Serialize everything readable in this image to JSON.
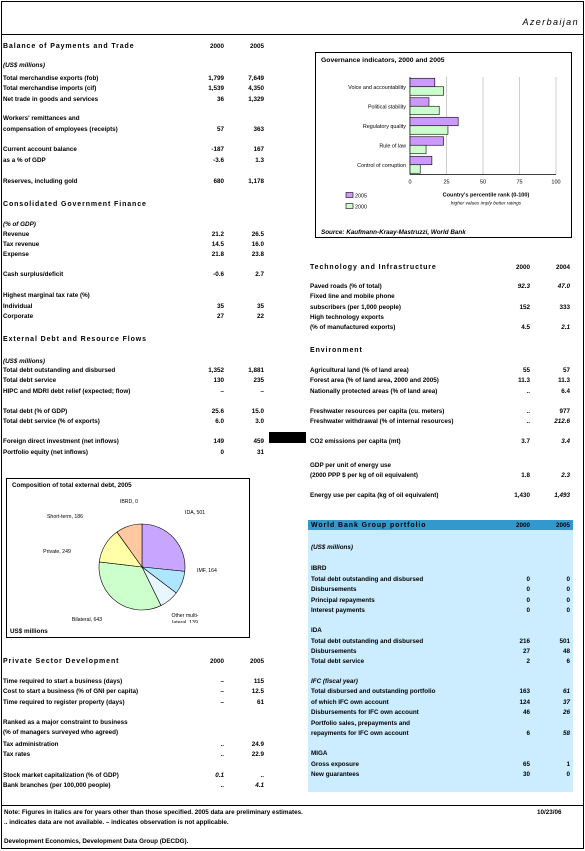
{
  "country": "Azerbaijan",
  "bop": {
    "title": "Balance of Payments and Trade",
    "y1": "2000",
    "y2": "2005",
    "unit": "(US$ millions)",
    "rows": [
      {
        "label": "Total merchandise exports (fob)",
        "v1": "1,799",
        "v2": "7,649"
      },
      {
        "label": "Total merchandise imports (cif)",
        "v1": "1,539",
        "v2": "4,350"
      },
      {
        "label": "Net trade in goods and services",
        "v1": "36",
        "v2": "1,329"
      },
      {
        "label": "Workers' remittances and",
        "v1": "",
        "v2": ""
      },
      {
        "label": "   compensation of employees (receipts)",
        "v1": "57",
        "v2": "363"
      },
      {
        "label": "Current account balance",
        "v1": "-187",
        "v2": "167"
      },
      {
        "label": "   as a % of GDP",
        "v1": "-3.6",
        "v2": "1.3"
      },
      {
        "label": "Reserves, including gold",
        "v1": "680",
        "v2": "1,178"
      }
    ]
  },
  "cgf": {
    "title": "Consolidated Government Finance",
    "unit": "(% of GDP)",
    "rows": [
      {
        "label": "Revenue",
        "v1": "21.2",
        "v2": "26.5"
      },
      {
        "label": "   Tax revenue",
        "v1": "14.5",
        "v2": "16.0"
      },
      {
        "label": "Expense",
        "v1": "21.8",
        "v2": "23.8"
      },
      {
        "label": "Cash surplus/deficit",
        "v1": "-0.6",
        "v2": "2.7"
      },
      {
        "label": "Highest marginal tax rate (%)",
        "v1": "",
        "v2": ""
      },
      {
        "label": "   Individual",
        "v1": "35",
        "v2": "35"
      },
      {
        "label": "   Corporate",
        "v1": "27",
        "v2": "22"
      }
    ]
  },
  "debt": {
    "title": "External Debt and Resource Flows",
    "unit": "(US$ millions)",
    "rows": [
      {
        "label": "Total debt outstanding and disbursed",
        "v1": "1,352",
        "v2": "1,881"
      },
      {
        "label": "Total debt service",
        "v1": "130",
        "v2": "235"
      },
      {
        "label": "HIPC and MDRI debt relief (expected; flow)",
        "v1": "–",
        "v2": "–"
      },
      {
        "label": "Total debt (% of GDP)",
        "v1": "25.6",
        "v2": "15.0"
      },
      {
        "label": "Total debt service (% of exports)",
        "v1": "6.0",
        "v2": "3.0"
      },
      {
        "label": "Foreign direct investment (net inflows)",
        "v1": "149",
        "v2": "459"
      },
      {
        "label": "Portfolio equity (net inflows)",
        "v1": "0",
        "v2": "31"
      }
    ]
  },
  "pie": {
    "title": "Composition of total external debt, 2005",
    "unit": "US$ millions",
    "chart_data": {
      "type": "pie",
      "title": "Composition of total external debt, 2005",
      "labels": [
        "IDA, 501",
        "IMF, 164",
        "Other multi-lateral, 139",
        "Bilateral, 643",
        "Private, 249",
        "Short-term, 186",
        "IBRD, 0"
      ],
      "categories": [
        "IDA",
        "IMF",
        "Other multi-lateral",
        "Bilateral",
        "Private",
        "Short-term",
        "IBRD"
      ],
      "values": [
        501,
        164,
        139,
        643,
        249,
        186,
        0
      ],
      "colors": [
        "#c8a6ff",
        "#aee6ff",
        "#e8f6ff",
        "#ccffcc",
        "#ffffa8",
        "#ffc8a0",
        "#ffffff"
      ]
    }
  },
  "psd": {
    "title": "Private Sector Development",
    "y1": "2000",
    "y2": "2005",
    "rows": [
      {
        "label": "Time required to start a business (days)",
        "v1": "–",
        "v2": "115"
      },
      {
        "label": "Cost to start a business (% of GNI per capita)",
        "v1": "–",
        "v2": "12.5"
      },
      {
        "label": "Time required to register property (days)",
        "v1": "–",
        "v2": "61"
      },
      {
        "label": "Ranked as a major constraint to business",
        "v1": "",
        "v2": ""
      },
      {
        "label": "   (% of managers surveyed who agreed)",
        "v1": "",
        "v2": ""
      },
      {
        "label": "      Tax administration",
        "v1": "..",
        "v2": "24.9"
      },
      {
        "label": "      Tax rates",
        "v1": "..",
        "v2": "22.9"
      },
      {
        "label": "Stock market capitalization (% of GDP)",
        "v1": "0.1",
        "v2": ".."
      },
      {
        "label": "Bank branches (per 100,000 people)",
        "v1": "..",
        "v2": "4.1"
      }
    ]
  },
  "gov": {
    "title": "Governance indicators, 2000 and 2005",
    "chart_data": {
      "type": "bar",
      "categories": [
        "Voice and accountability",
        "Political stability",
        "Regulatory quality",
        "Rule of law",
        "Control of corruption"
      ],
      "series": [
        {
          "name": "2005",
          "values": [
            17,
            13,
            33,
            23,
            15
          ],
          "color": "#cc99ff"
        },
        {
          "name": "2000",
          "values": [
            23,
            20,
            26,
            11,
            7
          ],
          "color": "#ccffcc"
        }
      ],
      "xlim": [
        0,
        100
      ],
      "ticks": [
        "0",
        "25",
        "50",
        "75",
        "100"
      ],
      "xlabel": "Country's percentile rank (0-100)",
      "xsublabel": "higher values imply better ratings"
    },
    "source": "Source: Kaufmann-Kraay-Mastruzzi, World Bank"
  },
  "tech": {
    "title": "Technology and Infrastructure",
    "y1": "2000",
    "y2": "2004",
    "rows": [
      {
        "label": "Paved roads (% of total)",
        "v1": "92.3",
        "v2": "47.0"
      },
      {
        "label": "Fixed line and mobile phone",
        "v1": "",
        "v2": ""
      },
      {
        "label": "   subscribers (per 1,000 people)",
        "v1": "152",
        "v2": "333"
      },
      {
        "label": "High technology exports",
        "v1": "",
        "v2": ""
      },
      {
        "label": "   (% of manufactured exports)",
        "v1": "4.5",
        "v2": "2.1"
      }
    ]
  },
  "env": {
    "title": "Environment",
    "rows": [
      {
        "label": "Agricultural land (% of land area)",
        "v1": "55",
        "v2": "57"
      },
      {
        "label": "Forest area (% of land area, 2000 and 2005)",
        "v1": "11.3",
        "v2": "11.3"
      },
      {
        "label": "Nationally protected areas (% of land area)",
        "v1": "..",
        "v2": "6.4"
      },
      {
        "label": "Freshwater resources per capita (cu. meters)",
        "v1": "..",
        "v2": "977"
      },
      {
        "label": "Freshwater withdrawal (% of internal resources)",
        "v1": "..",
        "v2": "212.6"
      },
      {
        "label": "CO2 emissions per capita (mt)",
        "v1": "3.7",
        "v2": "3.4"
      },
      {
        "label": "GDP per unit of energy use",
        "v1": "",
        "v2": ""
      },
      {
        "label": "   (2000 PPP $ per kg of oil equivalent)",
        "v1": "1.8",
        "v2": "2.3"
      },
      {
        "label": "Energy use per capita (kg of oil equivalent)",
        "v1": "1,430",
        "v2": "1,493"
      }
    ]
  },
  "wbg": {
    "title": "World Bank Group portfolio",
    "y1": "2000",
    "y2": "2005",
    "unit": "(US$ millions)",
    "rows": [
      {
        "label": "IBRD",
        "v1": "",
        "v2": ""
      },
      {
        "label": "   Total debt outstanding and disbursed",
        "v1": "0",
        "v2": "0"
      },
      {
        "label": "   Disbursements",
        "v1": "0",
        "v2": "0"
      },
      {
        "label": "   Principal repayments",
        "v1": "0",
        "v2": "0"
      },
      {
        "label": "   Interest payments",
        "v1": "0",
        "v2": "0"
      },
      {
        "label": "IDA",
        "v1": "",
        "v2": ""
      },
      {
        "label": "   Total debt outstanding and disbursed",
        "v1": "216",
        "v2": "501"
      },
      {
        "label": "   Disbursements",
        "v1": "27",
        "v2": "48"
      },
      {
        "label": "   Total debt service",
        "v1": "2",
        "v2": "6"
      },
      {
        "label": "IFC (fiscal year)",
        "v1": "",
        "v2": ""
      },
      {
        "label": "   Total disbursed and outstanding portfolio",
        "v1": "163",
        "v2": "61"
      },
      {
        "label": "      of which IFC own account",
        "v1": "124",
        "v2": "37"
      },
      {
        "label": "   Disbursements for IFC own account",
        "v1": "46",
        "v2": "26"
      },
      {
        "label": "   Portfolio sales, prepayments and",
        "v1": "",
        "v2": ""
      },
      {
        "label": "      repayments for IFC own account",
        "v1": "6",
        "v2": "58"
      },
      {
        "label": "MIGA",
        "v1": "",
        "v2": ""
      },
      {
        "label": "   Gross exposure",
        "v1": "65",
        "v2": "1"
      },
      {
        "label": "   New guarantees",
        "v1": "30",
        "v2": "0"
      }
    ]
  },
  "footer": {
    "note1": "Note: Figures in italics are for years other than those specified.  2005 data are preliminary estimates.",
    "note2": ".. indicates data are not available.  – indicates observation is not applicable.",
    "date": "10/23/06",
    "credit": "Development Economics, Development Data Group (DECDG)."
  }
}
